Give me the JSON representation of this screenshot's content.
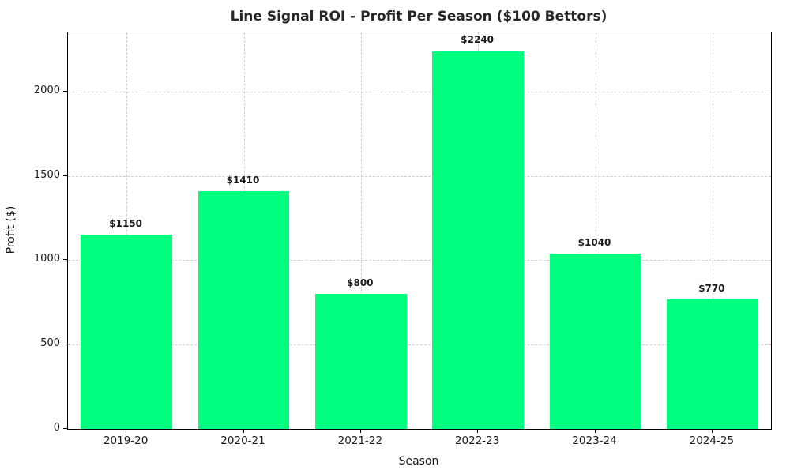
{
  "chart_data": {
    "type": "bar",
    "title": "Line Signal ROI - Profit Per Season ($100 Bettors)",
    "xlabel": "Season",
    "ylabel": "Profit ($)",
    "categories": [
      "2019-20",
      "2020-21",
      "2021-22",
      "2022-23",
      "2023-24",
      "2024-25"
    ],
    "values": [
      1150,
      1410,
      800,
      2240,
      1040,
      770
    ],
    "value_labels": [
      "$1150",
      "$1410",
      "$800",
      "$2240",
      "$1040",
      "$770"
    ],
    "yticks": [
      0,
      500,
      1000,
      1500,
      2000
    ],
    "ylim": [
      0,
      2350
    ],
    "bar_color": "#00FF7F",
    "grid": true,
    "grid_style": "dashed",
    "grid_color": "#cfcfcf",
    "legend_position": "none",
    "bar_width_fraction": 0.78
  }
}
